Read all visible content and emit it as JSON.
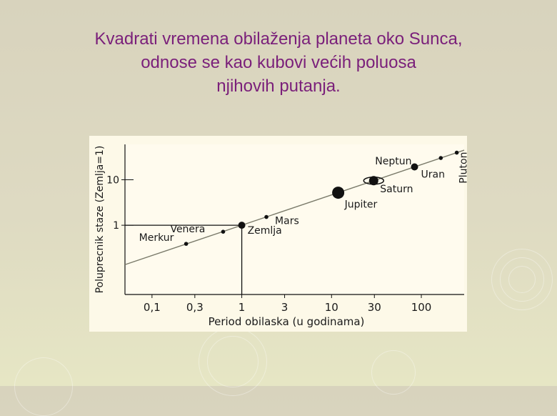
{
  "title_lines": [
    "Kvadrati vremena obilaženja planeta oko Sunca,",
    "odnose se kao kubovi većih poluosa",
    "njihovih putanja."
  ],
  "chart_data": {
    "type": "scatter",
    "xlabel": "Period obilaska (u godinama)",
    "ylabel": "Poluprecnik staze (Zemlja=1)",
    "x_scale": "log",
    "y_scale": "log",
    "xlim": [
      0.05,
      300
    ],
    "ylim": [
      0.03,
      60
    ],
    "x_ticks": [
      0.1,
      0.3,
      1,
      3,
      10,
      30,
      100
    ],
    "x_tick_labels": [
      "0,1",
      "0,3",
      "1",
      "3",
      "10",
      "30",
      "100"
    ],
    "y_ticks": [
      1,
      10
    ],
    "y_tick_labels": [
      "1",
      "10"
    ],
    "trend_line": {
      "x": [
        0.05,
        300
      ],
      "y": [
        0.136,
        44.8
      ]
    },
    "reference_lines": {
      "x": 1,
      "y": 1
    },
    "points": [
      {
        "label": "Merkur",
        "x": 0.24,
        "y": 0.39,
        "marker": "small"
      },
      {
        "label": "Venera",
        "x": 0.62,
        "y": 0.72,
        "marker": "small"
      },
      {
        "label": "Zemlja",
        "x": 1,
        "y": 1,
        "marker": "medium"
      },
      {
        "label": "Mars",
        "x": 1.88,
        "y": 1.52,
        "marker": "small"
      },
      {
        "label": "Jupiter",
        "x": 11.86,
        "y": 5.2,
        "marker": "large"
      },
      {
        "label": "Saturn",
        "x": 29.46,
        "y": 9.54,
        "marker": "ringed"
      },
      {
        "label": "Uran",
        "x": 84,
        "y": 19.2,
        "marker": "medium"
      },
      {
        "label": "Neptun",
        "x": 164.8,
        "y": 30.1,
        "marker": "small"
      },
      {
        "label": "Pluton",
        "x": 248,
        "y": 39.5,
        "marker": "small"
      }
    ]
  },
  "colors": {
    "title": "#7a1f7a",
    "plot_background": "#fdf9e8",
    "trend_line": "#7a7a6a",
    "marks": "#111111"
  }
}
